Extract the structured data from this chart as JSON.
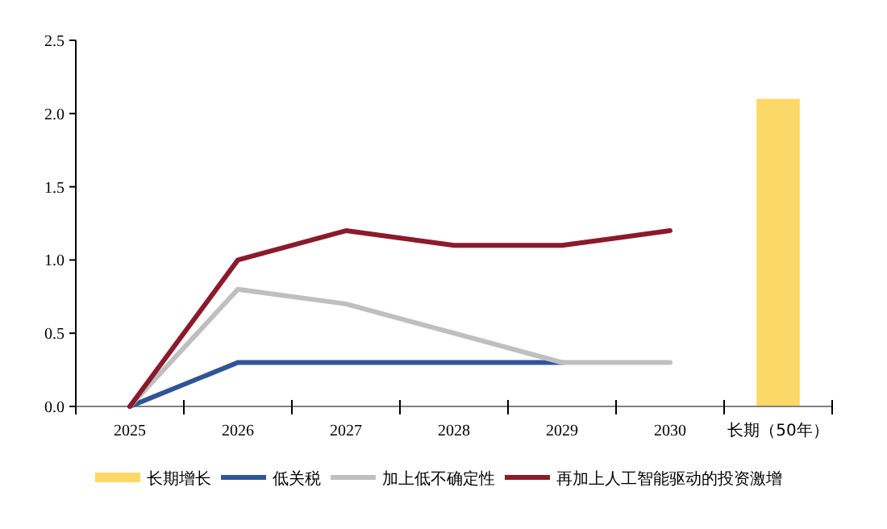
{
  "chart_data": {
    "type": "line",
    "categories": [
      "2025",
      "2026",
      "2027",
      "2028",
      "2029",
      "2030",
      "长期（50年）"
    ],
    "series": [
      {
        "name": "长期增长",
        "type": "bar",
        "color": "#fcd966",
        "values": [
          null,
          null,
          null,
          null,
          null,
          null,
          2.1
        ]
      },
      {
        "name": "低关税",
        "color": "#2f5597",
        "values": [
          0,
          0.3,
          0.3,
          0.3,
          0.3,
          null,
          null
        ]
      },
      {
        "name": "加上低不确定性",
        "color": "#bfbfbf",
        "values": [
          0,
          0.8,
          0.7,
          0.5,
          0.3,
          0.3,
          null
        ]
      },
      {
        "name": "再加上人工智能驱动的投资激增",
        "color": "#8b1a2b",
        "values": [
          0,
          1.0,
          1.2,
          1.1,
          1.1,
          1.2,
          null
        ]
      }
    ],
    "ylim": [
      0,
      2.5
    ],
    "yticks": [
      {
        "value": 0,
        "label": "0.0"
      },
      {
        "value": 0.5,
        "label": "0.5"
      },
      {
        "value": 1,
        "label": "1.0"
      },
      {
        "value": 1.5,
        "label": "1.5"
      },
      {
        "value": 2,
        "label": "2.0"
      },
      {
        "value": 2.5,
        "label": "2.5"
      }
    ],
    "legend": "bottom",
    "marker": "none",
    "line_style": "solid"
  }
}
